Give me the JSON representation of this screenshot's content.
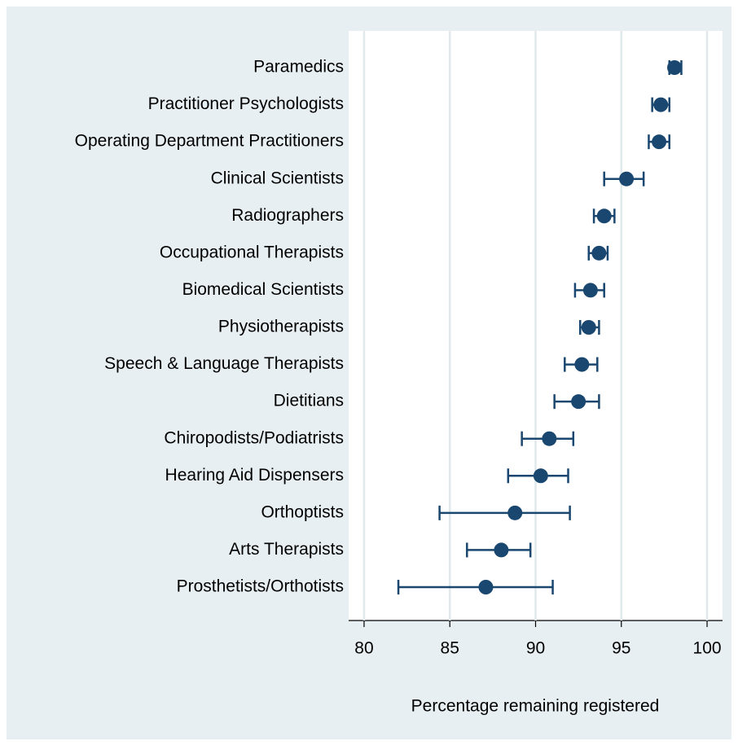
{
  "chart_data": {
    "type": "dot-errorbar",
    "x_label": "Percentage remaining registered",
    "categories": [
      "Paramedics",
      "Practitioner Psychologists",
      "Operating Department Practitioners",
      "Clinical Scientists",
      "Radiographers",
      "Occupational Therapists",
      "Biomedical Scientists",
      "Physiotherapists",
      "Speech & Language Therapists",
      "Dietitians",
      "Chiropodists/Podiatrists",
      "Hearing Aid Dispensers",
      "Orthoptists",
      "Arts Therapists",
      "Prosthetists/Orthotists"
    ],
    "values": [
      98.1,
      97.3,
      97.2,
      95.3,
      94.0,
      93.7,
      93.2,
      93.1,
      92.7,
      92.5,
      90.8,
      90.3,
      88.8,
      88.0,
      87.1
    ],
    "low": [
      97.8,
      96.8,
      96.6,
      94.0,
      93.4,
      93.1,
      92.3,
      92.6,
      91.7,
      91.1,
      89.2,
      88.4,
      84.4,
      86.0,
      82.0
    ],
    "high": [
      98.5,
      97.8,
      97.8,
      96.3,
      94.6,
      94.2,
      94.0,
      93.7,
      93.6,
      93.7,
      92.2,
      91.9,
      92.0,
      89.7,
      91.0
    ],
    "color": "#1a476f",
    "xlim": [
      79.1,
      100.9
    ],
    "xticks": [
      80,
      85,
      90,
      95,
      100
    ],
    "grid": true
  }
}
